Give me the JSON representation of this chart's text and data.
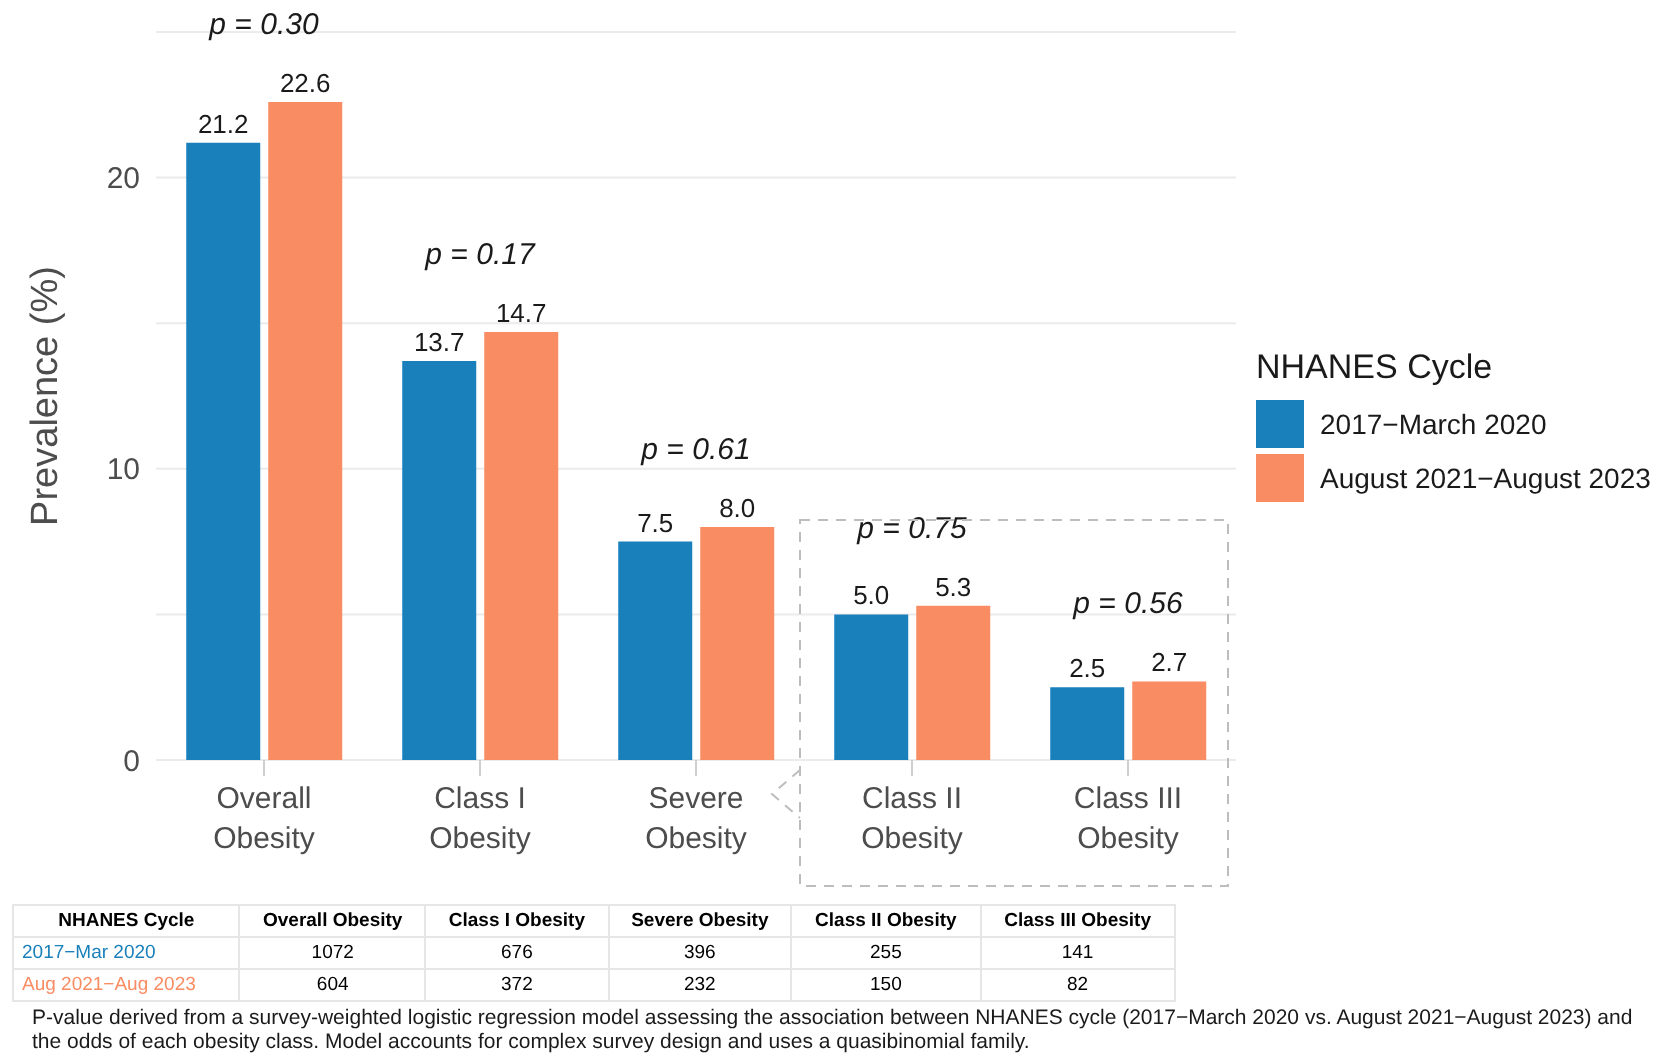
{
  "chart_data": [
    {
      "type": "bar",
      "ylabel": "Prevalence (%)",
      "legend_title": "NHANES Cycle",
      "categories": [
        "Overall Obesity",
        "Class I Obesity",
        "Severe Obesity",
        "Class II Obesity",
        "Class III Obesity"
      ],
      "series": [
        {
          "name": "2017−March 2020",
          "color": "#1a80bb",
          "values": [
            21.2,
            13.7,
            7.5,
            5.0,
            2.5
          ],
          "value_labels": [
            "21.2",
            "13.7",
            "7.5",
            "5.0",
            "2.5"
          ]
        },
        {
          "name": "August 2021−August 2023",
          "color": "#f98c62",
          "values": [
            22.6,
            14.7,
            8.0,
            5.3,
            2.7
          ],
          "value_labels": [
            "22.6",
            "14.7",
            "8.0",
            "5.3",
            "2.7"
          ]
        }
      ],
      "ylim": [
        0,
        25
      ],
      "yticks": [
        0,
        {
          "value": 5,
          "label": null
        },
        10,
        {
          "value": 15,
          "label": null
        },
        20,
        {
          "value": 25,
          "label": null
        }
      ],
      "grid": "y",
      "legend": "right",
      "annotations": [
        "p = 0.30",
        "p = 0.17",
        "p = 0.61",
        "p = 0.75",
        "p = 0.56",
        "P-value derived from a survey-weighted logistic regression model assessing the association between NHANES cycle (2017−March 2020 vs. August 2021−August 2023) and the odds of each obesity class. Model accounts for complex survey design and uses a quasibinomial family."
      ]
    },
    {
      "type": "other",
      "data_labels": true,
      "legend_title": "NHANES Cycle",
      "categories": [
        "Overall Obesity",
        "Class I Obesity",
        "Severe Obesity",
        "Class II Obesity",
        "Class III Obesity"
      ],
      "series": [
        {
          "name": "2017−Mar 2020",
          "color": "#1a80bb",
          "values": [
            1072,
            676,
            396,
            255,
            141
          ]
        },
        {
          "name": "Aug 2021−Aug 2023",
          "color": "#f98c62",
          "values": [
            604,
            372,
            232,
            150,
            82
          ]
        }
      ]
    }
  ]
}
